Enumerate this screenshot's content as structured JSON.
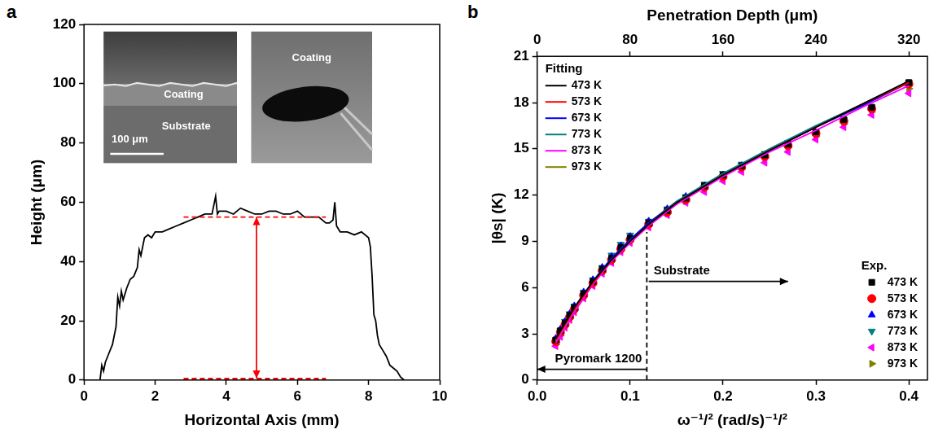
{
  "chart_data": [
    {
      "panel": "a",
      "type": "line",
      "xlabel": "Horizontal Axis (mm)",
      "ylabel": "Height (μm)",
      "xlim": [
        0,
        10
      ],
      "xticks": [
        0,
        2,
        4,
        6,
        8,
        10
      ],
      "ylim": [
        0,
        120
      ],
      "yticks": [
        0,
        20,
        40,
        60,
        80,
        100,
        120
      ],
      "grid": false,
      "series": [
        {
          "color": "#000000",
          "x": [
            0,
            0.3,
            0.45,
            0.5,
            0.55,
            0.6,
            0.7,
            0.8,
            0.9,
            0.95,
            1.0,
            1.05,
            1.1,
            1.2,
            1.3,
            1.4,
            1.5,
            1.55,
            1.6,
            1.7,
            1.8,
            1.9,
            2.0,
            2.2,
            2.4,
            2.6,
            2.8,
            3.0,
            3.2,
            3.4,
            3.6,
            3.7,
            3.75,
            3.8,
            4.0,
            4.2,
            4.4,
            4.6,
            4.8,
            5.0,
            5.2,
            5.4,
            5.6,
            5.8,
            6.0,
            6.2,
            6.4,
            6.6,
            6.8,
            6.9,
            7.0,
            7.05,
            7.1,
            7.2,
            7.4,
            7.6,
            7.8,
            8.0,
            8.05,
            8.1,
            8.15,
            8.2,
            8.25,
            8.3,
            8.4,
            8.5,
            8.6,
            8.7,
            8.8,
            8.9,
            9.0
          ],
          "values": [
            0,
            0,
            0,
            5,
            3,
            6,
            9,
            12,
            18,
            28,
            25,
            30,
            27,
            31,
            34,
            35,
            38,
            44,
            42,
            48,
            49,
            48,
            50,
            50,
            51,
            52,
            53,
            54,
            55,
            56,
            56,
            62,
            56,
            57,
            57,
            56,
            58,
            57,
            56,
            56,
            57,
            57,
            56,
            56,
            57,
            55,
            55,
            55,
            53,
            53,
            54,
            60,
            52,
            50,
            50,
            49,
            50,
            48,
            45,
            35,
            22,
            20,
            15,
            12,
            10,
            8,
            5,
            4,
            3,
            1,
            0
          ]
        }
      ],
      "annotations": [
        {
          "shape": "dashed_line",
          "color": "#ff0000",
          "x": [
            2.8,
            6.8
          ],
          "y": [
            55,
            55
          ]
        },
        {
          "shape": "dashed_line",
          "color": "#ff0000",
          "x": [
            2.8,
            6.8
          ],
          "y": [
            0.5,
            0.5
          ]
        },
        {
          "shape": "double_arrow",
          "color": "#ff0000",
          "x": [
            4.85,
            4.85
          ],
          "y": [
            0.5,
            55
          ]
        }
      ],
      "insets": [
        {
          "labels": [
            "Coating",
            "Substrate"
          ],
          "scale_bar": "100 μm"
        },
        {
          "labels": [
            "Coating"
          ]
        }
      ]
    },
    {
      "panel": "b",
      "type": "scatter",
      "xlabel": "ω⁻¹/² (rad/s)⁻¹/²",
      "x2label": "Penetration Depth (μm)",
      "ylabel": "|θs| (K)",
      "xlim": [
        0,
        0.42
      ],
      "xticks": [
        {
          "value": 0,
          "label": "0.0"
        },
        {
          "value": 0.1,
          "label": "0.1"
        },
        {
          "value": 0.2,
          "label": "0.2"
        },
        {
          "value": 0.3,
          "label": "0.3"
        },
        {
          "value": 0.4,
          "label": "0.4"
        }
      ],
      "x2lim": [
        0,
        336
      ],
      "x2ticks": [
        0,
        80,
        160,
        240,
        320
      ],
      "ylim": [
        0,
        21
      ],
      "yticks": [
        0,
        3,
        6,
        9,
        12,
        15,
        18,
        21
      ],
      "grid": false,
      "groups": [
        {
          "title": "Fitting",
          "legend": "upper left",
          "series": [
            {
              "name": "473 K",
              "type": "line",
              "color": "#000000",
              "x": [
                0.02,
                0.04,
                0.06,
                0.08,
                0.1,
                0.12,
                0.15,
                0.2,
                0.25,
                0.3,
                0.35,
                0.4
              ],
              "values": [
                2.7,
                4.7,
                6.4,
                7.8,
                9.0,
                10.1,
                11.5,
                13.3,
                14.9,
                16.4,
                17.9,
                19.4
              ]
            },
            {
              "name": "573 K",
              "type": "line",
              "color": "#ff0000",
              "x": [
                0.02,
                0.04,
                0.06,
                0.08,
                0.1,
                0.12,
                0.15,
                0.2,
                0.25,
                0.3,
                0.35,
                0.4
              ],
              "values": [
                2.6,
                4.6,
                6.3,
                7.8,
                9.0,
                10.1,
                11.5,
                13.3,
                14.9,
                16.4,
                17.9,
                19.3
              ]
            },
            {
              "name": "673 K",
              "type": "line",
              "color": "#0000ff",
              "x": [
                0.02,
                0.04,
                0.06,
                0.08,
                0.1,
                0.12,
                0.15,
                0.2,
                0.25,
                0.3,
                0.35,
                0.4
              ],
              "values": [
                2.7,
                4.7,
                6.4,
                7.9,
                9.1,
                10.2,
                11.5,
                13.3,
                14.9,
                16.4,
                17.8,
                19.3
              ]
            },
            {
              "name": "773 K",
              "type": "line",
              "color": "#008080",
              "x": [
                0.02,
                0.04,
                0.06,
                0.08,
                0.1,
                0.12,
                0.15,
                0.2,
                0.25,
                0.3,
                0.35,
                0.4
              ],
              "values": [
                2.6,
                4.6,
                6.4,
                7.9,
                9.1,
                10.2,
                11.6,
                13.4,
                15.0,
                16.5,
                17.9,
                19.4
              ]
            },
            {
              "name": "873 K",
              "type": "line",
              "color": "#ff00ff",
              "x": [
                0.02,
                0.04,
                0.06,
                0.08,
                0.1,
                0.12,
                0.15,
                0.2,
                0.25,
                0.3,
                0.35,
                0.4
              ],
              "values": [
                2.4,
                4.4,
                6.2,
                7.7,
                8.9,
                10.0,
                11.4,
                13.2,
                14.8,
                16.2,
                17.7,
                19.1
              ]
            },
            {
              "name": "973 K",
              "type": "line",
              "color": "#808000",
              "x": [
                0.02,
                0.04,
                0.06,
                0.08,
                0.1,
                0.12,
                0.15,
                0.2,
                0.25,
                0.3,
                0.35,
                0.4
              ],
              "values": [
                2.5,
                4.5,
                6.3,
                7.8,
                9.0,
                10.1,
                11.5,
                13.3,
                14.9,
                16.4,
                17.8,
                19.3
              ]
            }
          ]
        },
        {
          "title": "Exp.",
          "legend": "lower right",
          "series": [
            {
              "name": "473 K",
              "type": "scatter",
              "marker": "square",
              "color": "#000000",
              "x": [
                0.02,
                0.025,
                0.03,
                0.035,
                0.04,
                0.05,
                0.06,
                0.07,
                0.08,
                0.09,
                0.1,
                0.12,
                0.14,
                0.16,
                0.18,
                0.2,
                0.22,
                0.245,
                0.27,
                0.3,
                0.33,
                0.36,
                0.4
              ],
              "values": [
                2.6,
                3.2,
                3.7,
                4.2,
                4.7,
                5.6,
                6.4,
                7.2,
                7.9,
                8.6,
                9.2,
                10.2,
                11.0,
                11.8,
                12.6,
                13.3,
                13.9,
                14.6,
                15.3,
                16.1,
                16.9,
                17.7,
                19.3
              ]
            },
            {
              "name": "573 K",
              "type": "scatter",
              "marker": "circle",
              "color": "#ff0000",
              "x": [
                0.02,
                0.025,
                0.03,
                0.035,
                0.04,
                0.05,
                0.06,
                0.07,
                0.08,
                0.09,
                0.1,
                0.12,
                0.14,
                0.16,
                0.18,
                0.2,
                0.22,
                0.245,
                0.27,
                0.3,
                0.33,
                0.36,
                0.4
              ],
              "values": [
                2.5,
                3.1,
                3.6,
                4.1,
                4.6,
                5.5,
                6.3,
                7.1,
                7.8,
                8.5,
                9.1,
                10.1,
                10.9,
                11.7,
                12.5,
                13.2,
                13.8,
                14.5,
                15.2,
                16.0,
                16.8,
                17.6,
                19.2
              ]
            },
            {
              "name": "673 K",
              "type": "scatter",
              "marker": "triangle-up",
              "color": "#0000ff",
              "x": [
                0.02,
                0.025,
                0.03,
                0.035,
                0.04,
                0.05,
                0.06,
                0.07,
                0.08,
                0.09,
                0.1,
                0.12,
                0.14,
                0.16,
                0.18,
                0.2,
                0.22,
                0.245,
                0.27,
                0.3,
                0.33,
                0.36,
                0.4
              ],
              "values": [
                2.7,
                3.3,
                3.8,
                4.3,
                4.8,
                5.7,
                6.5,
                7.3,
                8.0,
                8.7,
                9.3,
                10.3,
                11.1,
                11.9,
                12.6,
                13.3,
                13.9,
                14.6,
                15.3,
                16.0,
                16.8,
                17.6,
                19.2
              ]
            },
            {
              "name": "773 K",
              "type": "scatter",
              "marker": "triangle-down",
              "color": "#008080",
              "x": [
                0.02,
                0.025,
                0.03,
                0.035,
                0.04,
                0.05,
                0.06,
                0.07,
                0.08,
                0.09,
                0.1,
                0.12,
                0.14,
                0.16,
                0.18,
                0.2,
                0.22,
                0.245,
                0.27,
                0.3,
                0.33,
                0.36,
                0.4
              ],
              "values": [
                2.6,
                3.2,
                3.8,
                4.3,
                4.8,
                5.7,
                6.5,
                7.3,
                8.1,
                8.8,
                9.4,
                10.3,
                11.1,
                11.9,
                12.7,
                13.4,
                14.0,
                14.7,
                15.4,
                16.1,
                16.9,
                17.7,
                19.3
              ]
            },
            {
              "name": "873 K",
              "type": "scatter",
              "marker": "triangle-left",
              "color": "#ff00ff",
              "x": [
                0.02,
                0.025,
                0.03,
                0.035,
                0.04,
                0.05,
                0.06,
                0.07,
                0.08,
                0.09,
                0.1,
                0.12,
                0.14,
                0.16,
                0.18,
                0.2,
                0.22,
                0.245,
                0.27,
                0.3,
                0.33,
                0.36,
                0.4
              ],
              "values": [
                2.2,
                2.8,
                3.4,
                3.9,
                4.4,
                5.3,
                6.1,
                6.9,
                7.6,
                8.3,
                8.9,
                9.9,
                10.7,
                11.5,
                12.2,
                12.9,
                13.5,
                14.1,
                14.8,
                15.6,
                16.4,
                17.2,
                18.6
              ]
            },
            {
              "name": "973 K",
              "type": "scatter",
              "marker": "triangle-right",
              "color": "#808000",
              "x": [
                0.02,
                0.025,
                0.03,
                0.035,
                0.04,
                0.05,
                0.06,
                0.07,
                0.08,
                0.09,
                0.1,
                0.12,
                0.14,
                0.16,
                0.18,
                0.2,
                0.22,
                0.245,
                0.27,
                0.3,
                0.33,
                0.36,
                0.4
              ],
              "values": [
                2.3,
                2.9,
                3.5,
                4.0,
                4.5,
                5.4,
                6.2,
                7.0,
                7.7,
                8.4,
                9.0,
                10.0,
                10.8,
                11.6,
                12.4,
                13.1,
                13.7,
                14.4,
                15.1,
                15.8,
                16.6,
                17.4,
                18.9
              ]
            }
          ]
        }
      ],
      "annotations": [
        {
          "shape": "dashed_line",
          "color": "#000000",
          "x": [
            0.118,
            0.118
          ],
          "y": [
            0,
            9.6
          ]
        },
        {
          "shape": "arrow",
          "color": "#000000",
          "x": [
            0.12,
            0.27
          ],
          "y": [
            6.4,
            6.4
          ],
          "text": "Substrate"
        },
        {
          "shape": "arrow",
          "color": "#000000",
          "x": [
            0.118,
            0.0
          ],
          "y": [
            0.7,
            0.7
          ],
          "text": "Pyromark 1200"
        }
      ]
    }
  ]
}
